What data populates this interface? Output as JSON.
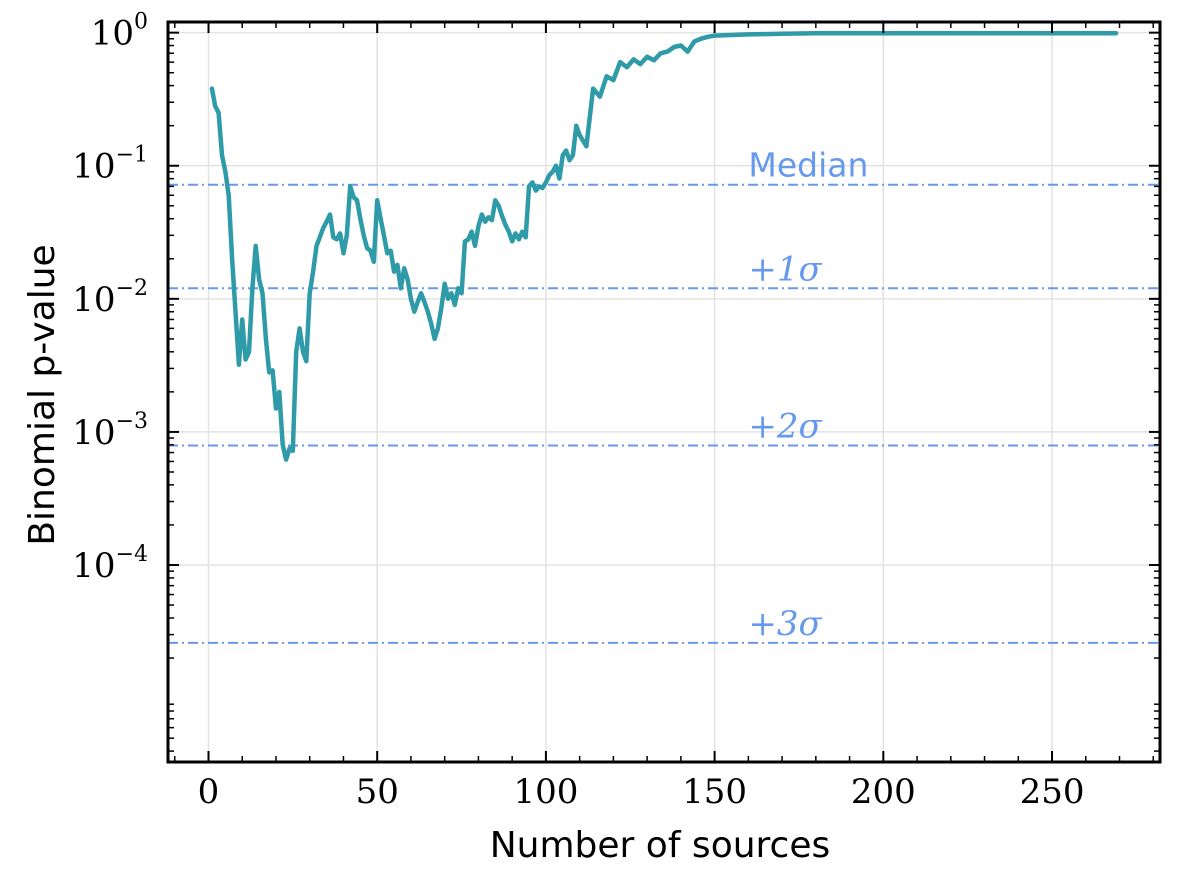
{
  "chart_data": {
    "type": "line",
    "xlabel": "Number of sources",
    "ylabel": "Binomial p-value",
    "xlim": [
      -12,
      282
    ],
    "ylim_log10": [
      -5.48,
      0.08
    ],
    "y_scale": "log",
    "grid": true,
    "x_ticks": [
      0,
      50,
      100,
      150,
      200,
      250
    ],
    "x_tick_labels": [
      "0",
      "50",
      "100",
      "150",
      "200",
      "250"
    ],
    "y_ticks_log10": [
      -4,
      -3,
      -2,
      -1,
      0
    ],
    "y_tick_labels": [
      {
        "base": "10",
        "exp": "−4"
      },
      {
        "base": "10",
        "exp": "−3"
      },
      {
        "base": "10",
        "exp": "−2"
      },
      {
        "base": "10",
        "exp": "−1"
      },
      {
        "base": "10",
        "exp": "0"
      }
    ],
    "series": [
      {
        "color": "#2f9aa8",
        "x": [
          1,
          2,
          3,
          4,
          5,
          6,
          7,
          8,
          9,
          10,
          11,
          12,
          13,
          14,
          15,
          16,
          17,
          18,
          19,
          20,
          21,
          22,
          23,
          24,
          25,
          26,
          27,
          28,
          29,
          30,
          31,
          32,
          33,
          34,
          35,
          36,
          37,
          38,
          39,
          40,
          41,
          42,
          43,
          44,
          45,
          46,
          47,
          48,
          49,
          50,
          51,
          52,
          53,
          54,
          55,
          56,
          57,
          58,
          59,
          60,
          61,
          62,
          63,
          64,
          65,
          66,
          67,
          68,
          69,
          70,
          71,
          72,
          73,
          74,
          75,
          76,
          77,
          78,
          79,
          80,
          81,
          82,
          83,
          84,
          85,
          86,
          87,
          88,
          89,
          90,
          91,
          92,
          93,
          94,
          95,
          96,
          97,
          98,
          99,
          100,
          101,
          102,
          103,
          104,
          105,
          106,
          107,
          108,
          109,
          110,
          112,
          114,
          116,
          118,
          120,
          122,
          124,
          126,
          128,
          130,
          132,
          134,
          136,
          138,
          140,
          142,
          144,
          146,
          148,
          150,
          155,
          160,
          165,
          170,
          175,
          180,
          190,
          200,
          210,
          220,
          230,
          240,
          250,
          260,
          269
        ],
        "y": [
          0.38,
          0.28,
          0.25,
          0.12,
          0.09,
          0.06,
          0.02,
          0.008,
          0.0032,
          0.007,
          0.0035,
          0.004,
          0.012,
          0.025,
          0.014,
          0.011,
          0.005,
          0.0028,
          0.0029,
          0.0015,
          0.002,
          0.0008,
          0.00062,
          0.00075,
          0.00072,
          0.004,
          0.006,
          0.004,
          0.0034,
          0.011,
          0.016,
          0.025,
          0.029,
          0.034,
          0.038,
          0.043,
          0.029,
          0.028,
          0.031,
          0.022,
          0.03,
          0.07,
          0.058,
          0.055,
          0.04,
          0.03,
          0.024,
          0.023,
          0.019,
          0.055,
          0.04,
          0.03,
          0.022,
          0.023,
          0.016,
          0.018,
          0.012,
          0.017,
          0.014,
          0.01,
          0.008,
          0.0095,
          0.011,
          0.0095,
          0.008,
          0.0065,
          0.005,
          0.006,
          0.0085,
          0.013,
          0.01,
          0.011,
          0.009,
          0.012,
          0.011,
          0.027,
          0.028,
          0.032,
          0.025,
          0.035,
          0.043,
          0.038,
          0.041,
          0.039,
          0.055,
          0.05,
          0.042,
          0.036,
          0.032,
          0.027,
          0.031,
          0.028,
          0.032,
          0.029,
          0.07,
          0.075,
          0.065,
          0.07,
          0.068,
          0.075,
          0.085,
          0.09,
          0.1,
          0.08,
          0.12,
          0.13,
          0.11,
          0.12,
          0.2,
          0.17,
          0.14,
          0.38,
          0.33,
          0.47,
          0.44,
          0.6,
          0.55,
          0.63,
          0.58,
          0.66,
          0.62,
          0.7,
          0.72,
          0.78,
          0.8,
          0.72,
          0.86,
          0.9,
          0.93,
          0.95,
          0.96,
          0.97,
          0.975,
          0.98,
          0.985,
          0.99,
          0.99,
          0.99,
          0.99,
          0.99,
          0.99,
          0.99,
          0.99,
          0.99,
          0.99
        ]
      }
    ],
    "reference_lines": [
      {
        "y": 0.072,
        "label": "Median",
        "label_x": 160,
        "color": "#6699ee"
      },
      {
        "y": 0.012,
        "label": "+1σ",
        "label_x": 160,
        "color": "#6699ee"
      },
      {
        "y": 0.00079,
        "label": "+2σ",
        "label_x": 160,
        "color": "#6699ee"
      },
      {
        "y": 2.6e-05,
        "label": "+3σ",
        "label_x": 160,
        "color": "#6699ee"
      }
    ]
  }
}
